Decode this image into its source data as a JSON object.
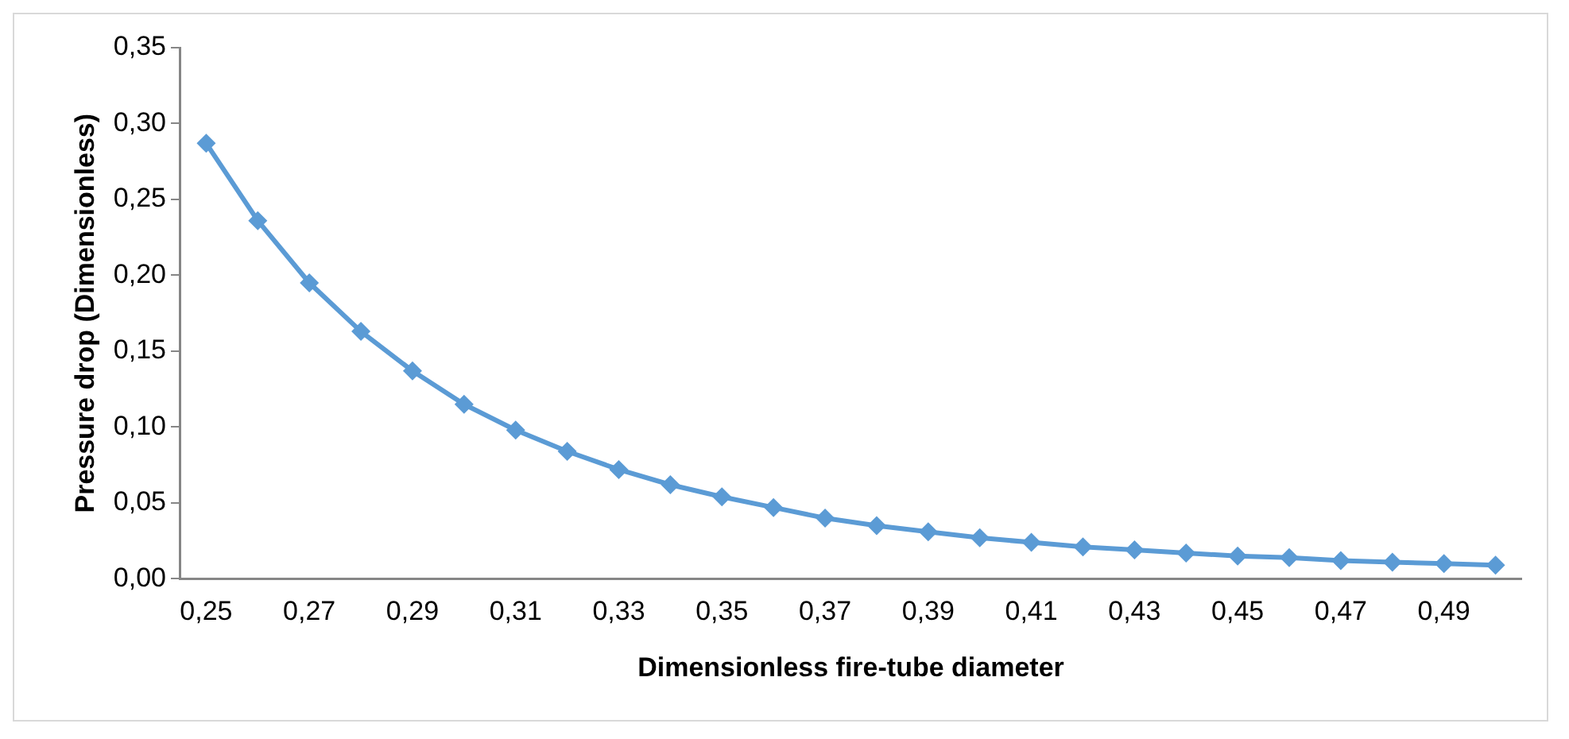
{
  "chart_data": {
    "type": "line",
    "xlabel": "Dimensionless fire-tube diameter",
    "ylabel": "Pressure drop (Dimensionless)",
    "categories": [
      "0,25",
      null,
      "0,27",
      null,
      "0,29",
      null,
      "0,31",
      null,
      "0,33",
      null,
      "0,35",
      null,
      "0,37",
      null,
      "0,39",
      null,
      "0,41",
      null,
      "0,43",
      null,
      "0,45",
      null,
      "0,47",
      null,
      "0,49",
      null
    ],
    "series": [
      {
        "color": "#5b9bd5",
        "values": [
          0.287,
          0.236,
          0.195,
          0.163,
          0.137,
          0.115,
          0.098,
          0.084,
          0.072,
          0.062,
          0.054,
          0.047,
          0.04,
          0.035,
          0.031,
          0.027,
          0.024,
          0.021,
          0.019,
          0.017,
          0.015,
          0.014,
          0.012,
          0.011,
          0.01,
          0.009
        ]
      }
    ],
    "ylim": [
      0,
      0.35
    ],
    "yticks": [
      {
        "value": 0,
        "label": "0,00"
      },
      {
        "value": 0.05,
        "label": "0,05"
      },
      {
        "value": 0.1,
        "label": "0,10"
      },
      {
        "value": 0.15,
        "label": "0,15"
      },
      {
        "value": 0.2,
        "label": "0,20"
      },
      {
        "value": 0.25,
        "label": "0,25"
      },
      {
        "value": 0.3,
        "label": "0,30"
      },
      {
        "value": 0.35,
        "label": "0,35"
      }
    ],
    "grid": false,
    "legend": false,
    "marker": "diamond",
    "line_style": "solid"
  }
}
